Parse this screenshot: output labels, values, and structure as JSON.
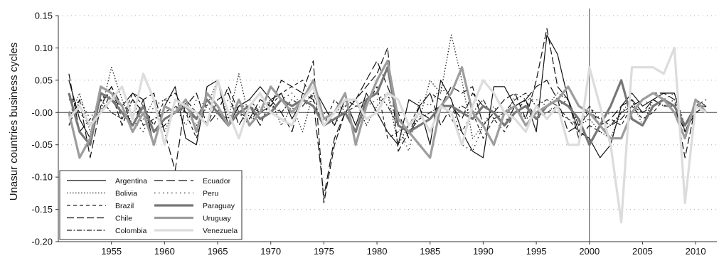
{
  "chart_data": {
    "type": "line",
    "title": "",
    "xlabel": "",
    "ylabel": "Unasur countries business cycles",
    "xlim": [
      1950,
      2012
    ],
    "ylim": [
      -0.2,
      0.15
    ],
    "xticks": [
      "1955",
      "1960",
      "1965",
      "1970",
      "1975",
      "1980",
      "1985",
      "1990",
      "1995",
      "2000",
      "2005",
      "2010"
    ],
    "yticks": [
      "0.15",
      "0.10",
      "0.05",
      "-0.00",
      "-0.05",
      "-0.10",
      "-0.15",
      "-0.20"
    ],
    "vline": 2000,
    "grid": "horizontal dotted",
    "legend_position": "bottom-left",
    "x": [
      1951,
      1952,
      1953,
      1954,
      1955,
      1956,
      1957,
      1958,
      1959,
      1960,
      1961,
      1962,
      1963,
      1964,
      1965,
      1966,
      1967,
      1968,
      1969,
      1970,
      1971,
      1972,
      1973,
      1974,
      1975,
      1976,
      1977,
      1978,
      1979,
      1980,
      1981,
      1982,
      1983,
      1984,
      1985,
      1986,
      1987,
      1988,
      1989,
      1990,
      1991,
      1992,
      1993,
      1994,
      1995,
      1996,
      1997,
      1998,
      1999,
      2000,
      2001,
      2002,
      2003,
      2004,
      2005,
      2006,
      2007,
      2008,
      2009,
      2010,
      2011
    ],
    "series": [
      {
        "name": "Argentina",
        "color": "#111111",
        "dash": "",
        "width": 1.2,
        "values": [
          0.05,
          -0.01,
          -0.04,
          0.03,
          0.02,
          0.01,
          0.03,
          0.02,
          -0.05,
          0.01,
          0.04,
          -0.04,
          -0.05,
          0.04,
          0.05,
          -0.02,
          0.01,
          0.02,
          0.04,
          0.02,
          0.03,
          -0.01,
          0.02,
          0.04,
          0.01,
          -0.02,
          0.02,
          -0.02,
          0.03,
          0.0,
          -0.03,
          -0.05,
          0.02,
          0.01,
          -0.05,
          0.05,
          0.02,
          -0.03,
          -0.06,
          -0.07,
          0.04,
          0.04,
          0.01,
          0.02,
          -0.03,
          0.12,
          0.09,
          0.02,
          -0.03,
          -0.04,
          -0.07,
          -0.05,
          0.01,
          0.03,
          0.01,
          0.02,
          0.03,
          0.03,
          -0.03,
          0.01,
          0.01
        ]
      },
      {
        "name": "Bolivia",
        "color": "#222222",
        "dash": "1.5,2.5",
        "width": 1.3,
        "values": [
          -0.01,
          0.03,
          -0.03,
          0.0,
          0.07,
          0.02,
          -0.02,
          -0.01,
          0.02,
          -0.03,
          0.01,
          0.0,
          -0.02,
          0.01,
          0.05,
          -0.01,
          0.06,
          -0.01,
          0.0,
          0.02,
          -0.02,
          0.01,
          -0.03,
          0.03,
          -0.01,
          0.0,
          0.01,
          0.02,
          -0.02,
          0.01,
          0.03,
          -0.05,
          -0.02,
          -0.01,
          0.05,
          0.03,
          0.12,
          0.05,
          -0.04,
          -0.02,
          0.0,
          -0.02,
          0.01,
          -0.01,
          0.0,
          0.01,
          0.03,
          0.02,
          -0.02,
          -0.01,
          -0.03,
          -0.04,
          0.0,
          0.02,
          -0.02,
          0.02,
          0.01,
          0.02,
          -0.02,
          0.01,
          0.0
        ]
      },
      {
        "name": "Brazil",
        "color": "#222222",
        "dash": "5,4",
        "width": 1.2,
        "values": [
          0.03,
          0.0,
          -0.02,
          0.02,
          0.04,
          -0.01,
          0.03,
          0.01,
          -0.02,
          0.02,
          0.03,
          0.0,
          -0.04,
          0.02,
          0.0,
          -0.01,
          0.01,
          0.02,
          0.0,
          0.01,
          0.03,
          0.04,
          0.05,
          0.02,
          -0.02,
          0.02,
          0.0,
          0.01,
          0.01,
          0.04,
          -0.04,
          -0.03,
          -0.02,
          0.01,
          0.03,
          0.02,
          -0.01,
          -0.03,
          0.0,
          -0.04,
          -0.01,
          -0.03,
          0.0,
          0.02,
          -0.01,
          0.0,
          0.01,
          -0.01,
          -0.03,
          0.01,
          -0.02,
          -0.01,
          -0.02,
          0.01,
          -0.01,
          0.0,
          0.02,
          0.01,
          -0.04,
          0.02,
          0.01
        ]
      },
      {
        "name": "Chile",
        "color": "#111111",
        "dash": "10,4",
        "width": 1.2,
        "values": [
          0.06,
          -0.03,
          -0.01,
          0.0,
          0.03,
          -0.02,
          0.02,
          0.0,
          -0.03,
          -0.02,
          0.0,
          0.01,
          0.03,
          -0.02,
          0.0,
          0.04,
          0.0,
          -0.01,
          0.02,
          0.01,
          0.05,
          0.04,
          0.03,
          0.08,
          -0.14,
          -0.05,
          0.0,
          0.02,
          0.04,
          0.06,
          0.1,
          -0.06,
          -0.03,
          0.0,
          -0.01,
          0.01,
          0.04,
          0.03,
          0.04,
          -0.02,
          0.0,
          0.02,
          0.03,
          -0.01,
          0.05,
          0.13,
          0.04,
          0.02,
          -0.04,
          -0.02,
          -0.03,
          -0.02,
          -0.01,
          0.01,
          0.02,
          0.03,
          0.03,
          0.02,
          -0.07,
          0.01,
          0.02
        ]
      },
      {
        "name": "Colombia",
        "color": "#222222",
        "dash": "7,2.5,2,2.5",
        "width": 1.2,
        "values": [
          0.02,
          0.01,
          -0.02,
          0.02,
          0.0,
          -0.01,
          0.02,
          -0.02,
          -0.01,
          0.0,
          0.01,
          0.0,
          -0.01,
          0.02,
          0.0,
          -0.02,
          0.01,
          0.01,
          0.0,
          0.01,
          0.0,
          0.02,
          0.01,
          0.03,
          -0.01,
          0.0,
          0.02,
          0.01,
          0.02,
          0.03,
          0.01,
          -0.02,
          -0.03,
          -0.01,
          0.0,
          0.01,
          0.0,
          0.01,
          0.0,
          0.02,
          -0.01,
          0.0,
          0.02,
          0.03,
          0.01,
          0.02,
          0.01,
          0.02,
          -0.02,
          0.0,
          -0.01,
          -0.02,
          0.0,
          0.01,
          0.0,
          0.01,
          0.02,
          0.01,
          -0.02,
          0.0,
          0.01
        ]
      },
      {
        "name": "Ecuador",
        "color": "#111111",
        "dash": "12,5",
        "width": 1.2,
        "values": [
          -0.02,
          0.02,
          -0.07,
          0.01,
          0.04,
          0.01,
          -0.02,
          0.02,
          0.03,
          -0.03,
          -0.09,
          0.02,
          0.0,
          -0.02,
          0.02,
          0.03,
          -0.02,
          0.01,
          -0.02,
          0.02,
          0.0,
          -0.03,
          0.03,
          0.02,
          -0.13,
          -0.04,
          0.0,
          0.02,
          0.05,
          0.08,
          0.04,
          0.0,
          -0.04,
          0.01,
          0.03,
          -0.02,
          0.01,
          -0.01,
          0.03,
          0.01,
          0.0,
          -0.02,
          0.01,
          0.02,
          0.04,
          0.05,
          0.02,
          -0.03,
          -0.02,
          0.0,
          -0.02,
          -0.01,
          0.01,
          0.02,
          0.0,
          0.02,
          0.01,
          0.01,
          -0.03,
          0.0,
          0.01
        ]
      },
      {
        "name": "Peru",
        "color": "#222222",
        "dash": "1.5,4.5",
        "width": 1.3,
        "values": [
          0.0,
          0.02,
          -0.01,
          0.02,
          0.03,
          0.0,
          -0.01,
          -0.03,
          0.01,
          0.02,
          0.01,
          -0.02,
          0.02,
          0.01,
          -0.01,
          0.02,
          0.0,
          -0.02,
          0.01,
          0.0,
          0.02,
          0.03,
          0.01,
          0.02,
          0.0,
          -0.02,
          0.01,
          -0.03,
          0.01,
          0.02,
          0.03,
          -0.02,
          -0.06,
          0.02,
          0.01,
          0.04,
          0.02,
          -0.05,
          -0.06,
          -0.02,
          0.01,
          -0.02,
          0.03,
          0.02,
          0.02,
          0.01,
          0.0,
          -0.01,
          -0.02,
          0.01,
          -0.01,
          0.0,
          0.0,
          0.01,
          0.02,
          0.01,
          0.02,
          0.03,
          -0.02,
          0.01,
          0.0
        ]
      },
      {
        "name": "Paraguay",
        "color": "#777777",
        "dash": "",
        "width": 3.2,
        "values": [
          0.03,
          -0.03,
          -0.05,
          0.03,
          0.02,
          0.0,
          -0.02,
          0.01,
          -0.03,
          -0.01,
          0.0,
          0.01,
          -0.01,
          0.02,
          0.0,
          -0.02,
          0.0,
          0.01,
          -0.01,
          0.0,
          0.02,
          0.01,
          0.02,
          0.01,
          -0.02,
          -0.01,
          0.0,
          -0.03,
          0.02,
          0.03,
          0.07,
          -0.02,
          -0.03,
          -0.02,
          -0.01,
          0.01,
          0.01,
          0.0,
          -0.01,
          0.01,
          0.0,
          -0.02,
          0.0,
          0.01,
          -0.01,
          0.01,
          0.02,
          0.01,
          -0.01,
          -0.05,
          -0.02,
          0.01,
          0.05,
          -0.01,
          -0.02,
          0.01,
          0.02,
          0.01,
          -0.02,
          0.01,
          0.0
        ]
      },
      {
        "name": "Uruguay",
        "color": "#9d9d9d",
        "dash": "",
        "width": 3.2,
        "values": [
          0.0,
          -0.07,
          -0.04,
          0.04,
          0.03,
          0.01,
          -0.03,
          0.0,
          -0.05,
          0.01,
          0.0,
          0.02,
          -0.03,
          0.03,
          0.01,
          -0.02,
          0.02,
          -0.02,
          0.0,
          0.04,
          0.02,
          0.0,
          0.02,
          0.05,
          -0.01,
          0.0,
          0.03,
          -0.05,
          0.01,
          0.05,
          0.08,
          -0.01,
          -0.03,
          -0.05,
          -0.07,
          0.01,
          0.03,
          0.07,
          0.0,
          -0.02,
          -0.05,
          0.0,
          0.01,
          -0.02,
          0.0,
          0.01,
          0.02,
          0.04,
          0.01,
          0.0,
          -0.02,
          -0.04,
          -0.04,
          0.0,
          0.02,
          0.03,
          0.02,
          0.0,
          -0.04,
          0.02,
          0.0
        ]
      },
      {
        "name": "Venezuela",
        "color": "#dcdcdc",
        "dash": "",
        "width": 3.2,
        "values": [
          -0.01,
          0.01,
          -0.02,
          0.0,
          0.02,
          0.04,
          -0.01,
          0.06,
          0.02,
          -0.05,
          0.02,
          0.01,
          0.0,
          -0.02,
          0.05,
          0.0,
          -0.04,
          0.01,
          0.03,
          0.0,
          -0.01,
          -0.02,
          0.02,
          0.04,
          -0.02,
          0.0,
          0.02,
          0.02,
          -0.01,
          0.0,
          0.03,
          0.02,
          -0.02,
          0.0,
          -0.03,
          0.01,
          0.0,
          -0.05,
          0.01,
          0.05,
          0.03,
          0.0,
          -0.01,
          -0.03,
          0.01,
          -0.01,
          0.01,
          -0.05,
          -0.05,
          0.07,
          0.01,
          -0.05,
          -0.17,
          0.07,
          0.07,
          0.07,
          0.06,
          0.1,
          -0.14,
          0.01,
          0.0
        ]
      }
    ]
  }
}
